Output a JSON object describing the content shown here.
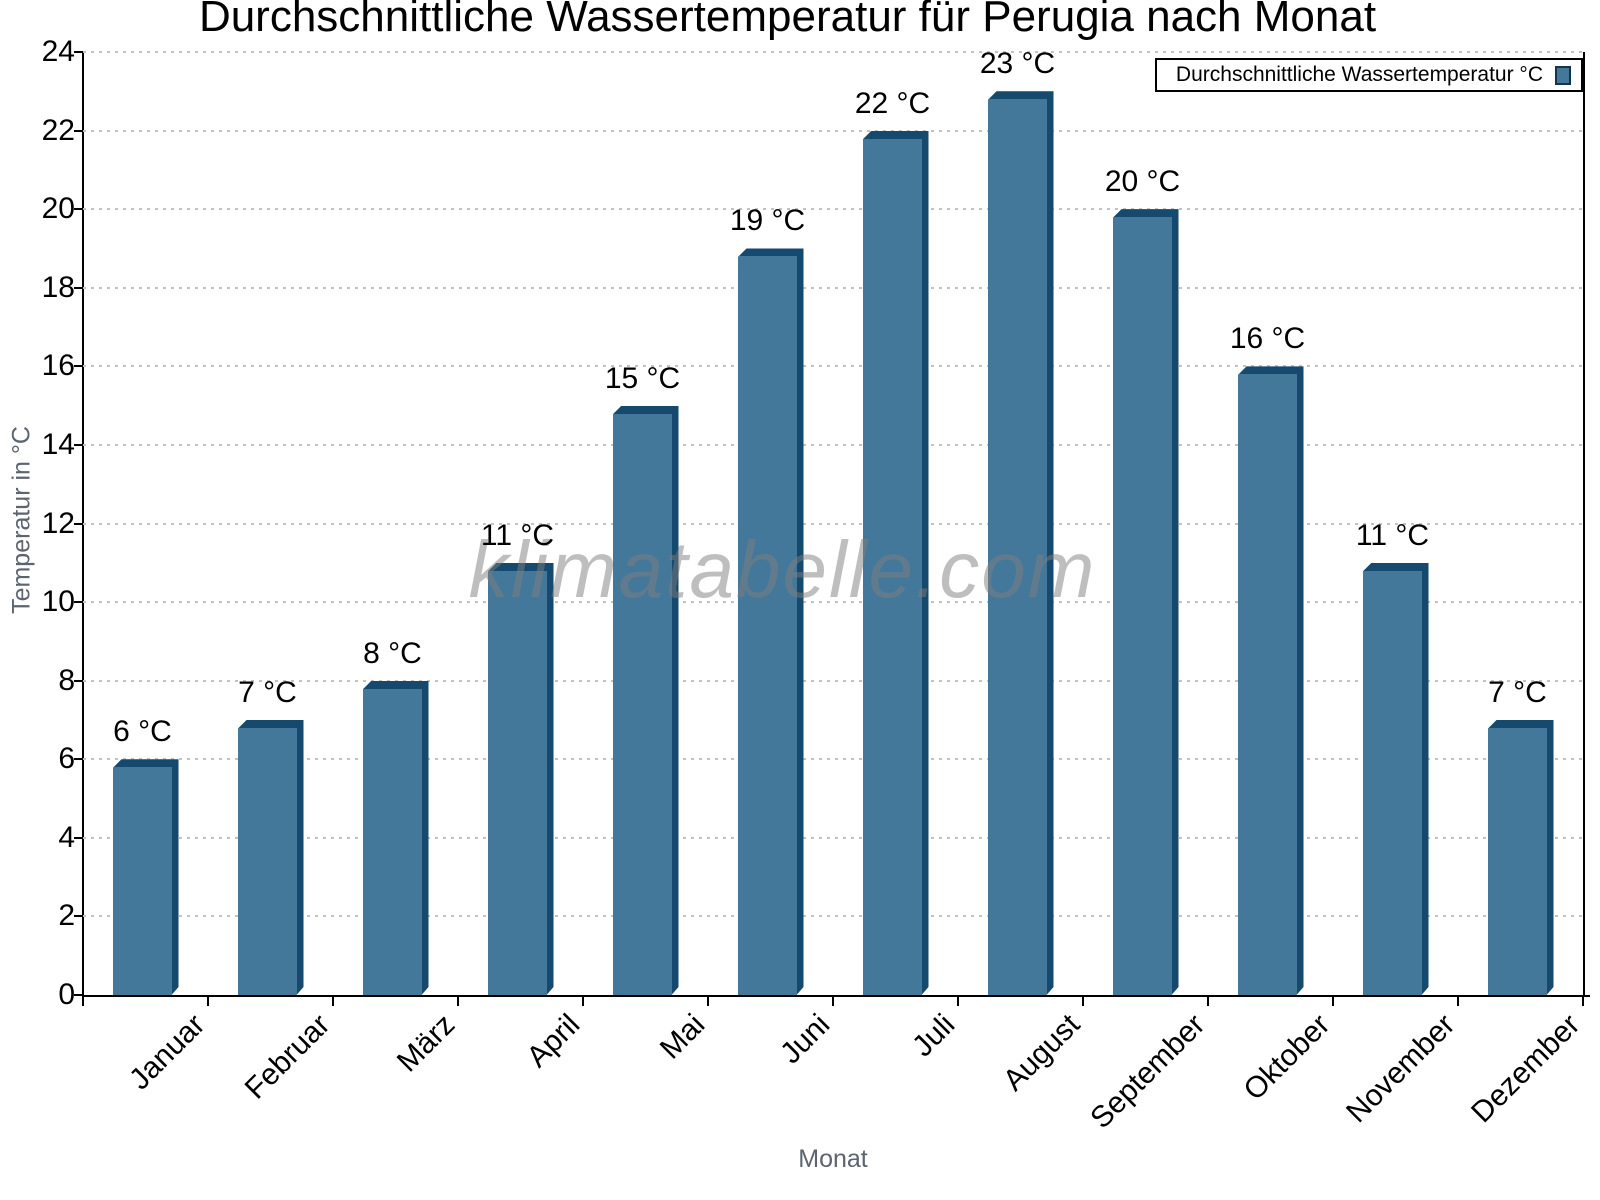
{
  "page": {
    "title": "Durchschnittliche Wassertemperatur für Perugia nach Monat",
    "watermark": "klimatabelle.com"
  },
  "legend": {
    "label": "Durchschnittliche Wassertemperatur °C"
  },
  "colors": {
    "bar_face": "#44789B",
    "bar_edge": "#15496D",
    "grid": "#c2c2c2",
    "axis": "#000000",
    "axis_title_gray": "#5b6470",
    "watermark_gray": "rgba(125,125,125,0.5)"
  },
  "chart_data": {
    "type": "bar",
    "title": "Durchschnittliche Wassertemperatur für Perugia nach Monat",
    "categories": [
      "Januar",
      "Februar",
      "März",
      "April",
      "Mai",
      "Juni",
      "Juli",
      "August",
      "September",
      "Oktober",
      "November",
      "Dezember"
    ],
    "values": [
      6,
      7,
      8,
      11,
      15,
      19,
      22,
      23,
      20,
      16,
      11,
      7
    ],
    "value_label_unit": " °C",
    "value_labels": [
      "6 °C",
      "7 °C",
      "8 °C",
      "11 °C",
      "15 °C",
      "19 °C",
      "22 °C",
      "23 °C",
      "20 °C",
      "16 °C",
      "11 °C",
      "7 °C"
    ],
    "xlabel": "Monat",
    "ylabel": "Temperatur in °C",
    "ylim": [
      0,
      24
    ],
    "ytick_step": 2,
    "ytick_labels": [
      "0",
      "2",
      "4",
      "6",
      "8",
      "10",
      "12",
      "14",
      "16",
      "18",
      "20",
      "22",
      "24"
    ],
    "grid": "horizontal-dotted",
    "legend": [
      "Durchschnittliche Wassertemperatur °C"
    ],
    "legend_position": "top-right",
    "series": [
      {
        "name": "Durchschnittliche Wassertemperatur °C",
        "values": [
          6,
          7,
          8,
          11,
          15,
          19,
          22,
          23,
          20,
          16,
          11,
          7
        ]
      }
    ]
  }
}
